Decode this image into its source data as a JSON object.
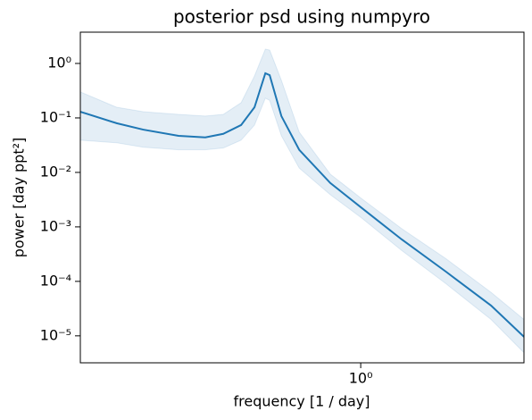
{
  "chart_data": {
    "type": "line",
    "title": "posterior psd using numpyro",
    "xlabel": "frequency [1 / day]",
    "ylabel": "power [day ppt²]",
    "xscale": "log",
    "yscale": "log",
    "x": [
      0.128,
      0.167,
      0.203,
      0.263,
      0.32,
      0.365,
      0.416,
      0.459,
      0.497,
      0.513,
      0.559,
      0.637,
      0.8,
      1.0,
      1.35,
      1.87,
      2.6,
      3.31
    ],
    "series": [
      {
        "color": "#1f77b4",
        "values": [
          0.13,
          0.08,
          0.061,
          0.047,
          0.044,
          0.051,
          0.074,
          0.157,
          0.66,
          0.61,
          0.108,
          0.026,
          0.0064,
          0.0023,
          0.00059,
          0.00015,
          3.6e-05,
          9.6e-06
        ],
        "lower": [
          0.039,
          0.035,
          0.029,
          0.026,
          0.026,
          0.028,
          0.039,
          0.074,
          0.23,
          0.21,
          0.047,
          0.012,
          0.0039,
          0.0015,
          0.00037,
          9e-05,
          2e-05,
          4.9e-06
        ],
        "upper": [
          0.3,
          0.157,
          0.13,
          0.116,
          0.108,
          0.116,
          0.19,
          0.59,
          1.83,
          1.76,
          0.49,
          0.055,
          0.0093,
          0.0034,
          0.00093,
          0.00026,
          6.3e-05,
          2e-05
        ],
        "band_opacity": 0.12
      }
    ],
    "xlim": [
      0.128,
      3.31
    ],
    "ylim": [
      3.2e-06,
      3.75
    ],
    "xticks": [
      {
        "value": 1,
        "label": "10⁰"
      }
    ],
    "yticks": [
      {
        "value": 1e-05,
        "label": "10⁻⁵"
      },
      {
        "value": 0.0001,
        "label": "10⁻⁴"
      },
      {
        "value": 0.001,
        "label": "10⁻³"
      },
      {
        "value": 0.01,
        "label": "10⁻²"
      },
      {
        "value": 0.1,
        "label": "10⁻¹"
      },
      {
        "value": 1,
        "label": "10⁰"
      }
    ]
  }
}
